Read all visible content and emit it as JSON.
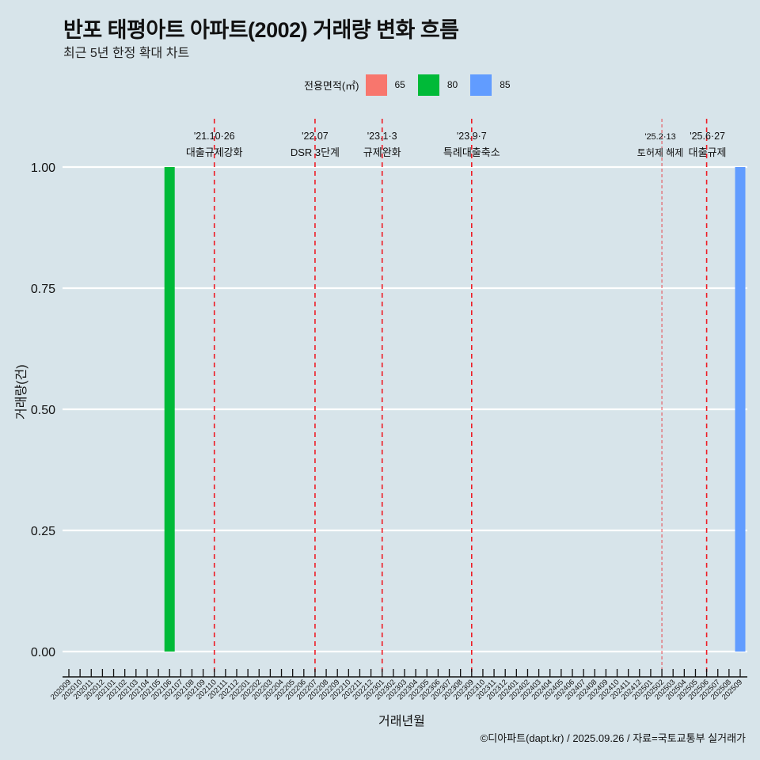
{
  "header": {
    "title": "반포 태평아트 아파트(2002) 거래량 변화 흐름",
    "subtitle": "최근 5년 한정 확대 차트"
  },
  "legend": {
    "title": "전용면적(㎡)",
    "items": [
      {
        "label": "65",
        "color": "#f8766d"
      },
      {
        "label": "80",
        "color": "#00ba38"
      },
      {
        "label": "85",
        "color": "#619cff"
      }
    ]
  },
  "axes": {
    "xlabel": "거래년월",
    "ylabel": "거래량(건)"
  },
  "caption": "©디아파트(dapt.kr) / 2025.09.26 / 자료=국토교통부 실거래가",
  "chart_data": {
    "type": "bar",
    "title": "반포 태평아트 아파트(2002) 거래량 변화 흐름",
    "subtitle": "최근 5년 한정 확대 차트",
    "xlabel": "거래년월",
    "ylabel": "거래량(건)",
    "ylim": [
      0,
      1
    ],
    "yticks": [
      "0.00",
      "0.25",
      "0.50",
      "0.75",
      "1.00"
    ],
    "grid": true,
    "legend_position": "top",
    "categories": [
      "202009",
      "202010",
      "202011",
      "202012",
      "202101",
      "202102",
      "202103",
      "202104",
      "202105",
      "202106",
      "202107",
      "202108",
      "202109",
      "202110",
      "202111",
      "202112",
      "202201",
      "202202",
      "202203",
      "202204",
      "202205",
      "202206",
      "202207",
      "202208",
      "202209",
      "202210",
      "202211",
      "202212",
      "202301",
      "202302",
      "202303",
      "202304",
      "202305",
      "202306",
      "202307",
      "202308",
      "202309",
      "202310",
      "202311",
      "202312",
      "202401",
      "202402",
      "202403",
      "202404",
      "202405",
      "202406",
      "202407",
      "202408",
      "202409",
      "202410",
      "202411",
      "202412",
      "202501",
      "202502",
      "202503",
      "202504",
      "202505",
      "202506",
      "202507",
      "202508",
      "202509"
    ],
    "series": [
      {
        "name": "65",
        "color": "#f8766d",
        "points": []
      },
      {
        "name": "80",
        "color": "#00ba38",
        "points": [
          {
            "x": "202106",
            "y": 1
          }
        ]
      },
      {
        "name": "85",
        "color": "#619cff",
        "points": [
          {
            "x": "202509",
            "y": 1
          }
        ]
      }
    ],
    "annotations": [
      {
        "x": "202110",
        "date": "'21.10·26",
        "label": "대출규제강화"
      },
      {
        "x": "202207",
        "date": "'22.07",
        "label": "DSR 3단계"
      },
      {
        "x": "202301",
        "date": "'23.1·3",
        "label": "규제완화"
      },
      {
        "x": "202309",
        "date": "'23.9·7",
        "label": "특례대출축소"
      },
      {
        "x": "202502",
        "date": "'25.2·13",
        "label": "토허제 해제"
      },
      {
        "x": "202506",
        "date": "'25.6·27",
        "label": "대출규제"
      }
    ]
  }
}
